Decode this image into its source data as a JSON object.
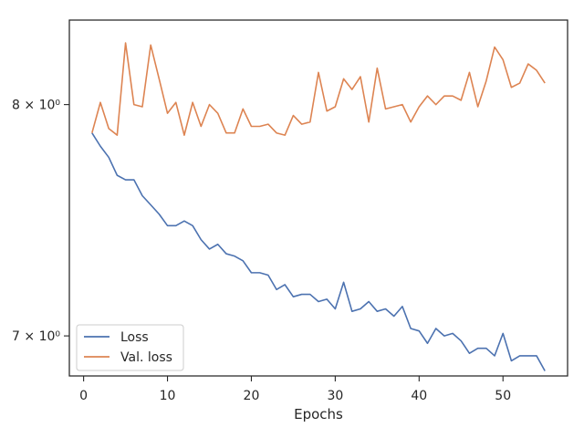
{
  "chart_data": {
    "type": "line",
    "title": "",
    "xlabel": "Epochs",
    "ylabel": "",
    "xlim": [
      -1.7,
      57.7
    ],
    "ylim": [
      6.84,
      8.4
    ],
    "yscale": "log",
    "grid": false,
    "legend_position": "lower-left",
    "x_ticks": [
      0,
      10,
      20,
      30,
      40,
      50
    ],
    "x_tick_labels": [
      "0",
      "10",
      "20",
      "30",
      "40",
      "50"
    ],
    "y_ticks": [
      7,
      8
    ],
    "y_tick_labels": [
      "7 × 10⁰",
      "8 × 10⁰"
    ],
    "x": [
      1,
      2,
      3,
      4,
      5,
      6,
      7,
      8,
      9,
      10,
      11,
      12,
      13,
      14,
      15,
      16,
      17,
      18,
      19,
      20,
      21,
      22,
      23,
      24,
      25,
      26,
      27,
      28,
      29,
      30,
      31,
      32,
      33,
      34,
      35,
      36,
      37,
      38,
      39,
      40,
      41,
      42,
      43,
      44,
      45,
      46,
      47,
      48,
      49,
      50,
      51,
      52,
      53,
      54,
      55
    ],
    "series": [
      {
        "name": "Loss",
        "color": "#4c72b0",
        "values": [
          7.87,
          7.81,
          7.76,
          7.68,
          7.66,
          7.66,
          7.59,
          7.55,
          7.51,
          7.46,
          7.46,
          7.48,
          7.46,
          7.4,
          7.36,
          7.38,
          7.34,
          7.33,
          7.31,
          7.26,
          7.26,
          7.25,
          7.19,
          7.21,
          7.16,
          7.17,
          7.17,
          7.14,
          7.15,
          7.11,
          7.22,
          7.1,
          7.11,
          7.14,
          7.1,
          7.11,
          7.08,
          7.12,
          7.03,
          7.02,
          6.97,
          7.03,
          7.0,
          7.01,
          6.98,
          6.93,
          6.95,
          6.95,
          6.92,
          7.01,
          6.9,
          6.92,
          6.92,
          6.92,
          6.86
        ]
      },
      {
        "name": "Val. loss",
        "color": "#dd8452",
        "values": [
          7.87,
          8.01,
          7.89,
          7.86,
          8.29,
          8.0,
          7.99,
          8.28,
          8.12,
          7.96,
          8.01,
          7.86,
          8.01,
          7.9,
          8.0,
          7.96,
          7.87,
          7.87,
          7.98,
          7.9,
          7.9,
          7.91,
          7.87,
          7.86,
          7.95,
          7.91,
          7.92,
          8.15,
          7.97,
          7.99,
          8.12,
          8.07,
          8.13,
          7.92,
          8.17,
          7.98,
          7.99,
          8.0,
          7.92,
          7.99,
          8.04,
          8.0,
          8.04,
          8.04,
          8.02,
          8.15,
          7.99,
          8.11,
          8.27,
          8.21,
          8.08,
          8.1,
          8.19,
          8.16,
          8.1
        ]
      }
    ]
  }
}
